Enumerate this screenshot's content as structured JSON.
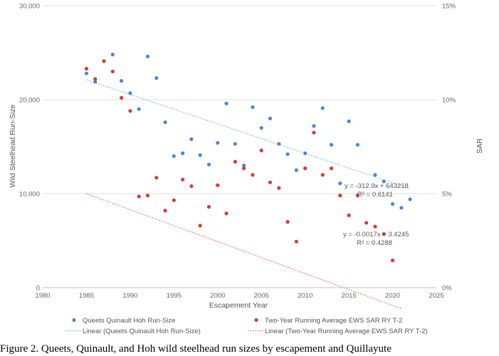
{
  "colors": {
    "series_1": "#4a86d8",
    "series_2": "#d93a32",
    "trend_1": "#7fb7bd",
    "trend_2": "#e0705f",
    "grid": "#dddddd"
  },
  "caption": "Figure 2.  Queets, Quinault, and Hoh wild steelhead run sizes by escapement and Quillayute",
  "chart_data": {
    "type": "scatter",
    "xlabel": "Escapement Year",
    "ylabel": "Wild Steelhead Run-Size",
    "y2label": "SAR",
    "xlim": [
      1980,
      2025
    ],
    "ylim": [
      0,
      30000
    ],
    "y2lim": [
      0,
      0.15
    ],
    "x_ticks": [
      "1980",
      "1985",
      "1990",
      "1995",
      "2000",
      "2005",
      "2010",
      "2015",
      "2020",
      "2025"
    ],
    "y_ticks": [
      "0",
      "10,000",
      "20,000",
      "30,000"
    ],
    "y2_ticks": [
      "0%",
      "5%",
      "10%",
      "15%"
    ],
    "grid": "horizontal",
    "legend_position": "bottom",
    "series": [
      {
        "name": "Queets Quinault Hoh Run-Size",
        "axis": "left",
        "marker": "dot",
        "points": [
          [
            1985,
            22800
          ],
          [
            1986,
            21900
          ],
          [
            1988,
            24800
          ],
          [
            1989,
            22000
          ],
          [
            1990,
            20700
          ],
          [
            1991,
            19000
          ],
          [
            1992,
            24600
          ],
          [
            1993,
            22300
          ],
          [
            1994,
            17600
          ],
          [
            1995,
            14000
          ],
          [
            1996,
            14300
          ],
          [
            1997,
            15800
          ],
          [
            1998,
            14100
          ],
          [
            1999,
            13100
          ],
          [
            2000,
            15400
          ],
          [
            2001,
            19600
          ],
          [
            2002,
            15300
          ],
          [
            2003,
            13000
          ],
          [
            2004,
            19200
          ],
          [
            2005,
            17000
          ],
          [
            2006,
            18000
          ],
          [
            2007,
            15300
          ],
          [
            2008,
            14200
          ],
          [
            2009,
            12500
          ],
          [
            2010,
            14300
          ],
          [
            2011,
            17200
          ],
          [
            2012,
            19100
          ],
          [
            2013,
            15200
          ],
          [
            2014,
            11100
          ],
          [
            2015,
            17700
          ],
          [
            2016,
            15200
          ],
          [
            2018,
            12000
          ],
          [
            2019,
            11300
          ],
          [
            2020,
            8900
          ],
          [
            2021,
            8500
          ],
          [
            2022,
            9400
          ]
        ]
      },
      {
        "name": "Two-Year Running Average EWS SAR RY T-2",
        "axis": "right",
        "marker": "dot",
        "points": [
          [
            1985,
            0.1165
          ],
          [
            1986,
            0.111
          ],
          [
            1987,
            0.1205
          ],
          [
            1988,
            0.115
          ],
          [
            1989,
            0.101
          ],
          [
            1990,
            0.094
          ],
          [
            1991,
            0.0485
          ],
          [
            1992,
            0.049
          ],
          [
            1993,
            0.0585
          ],
          [
            1994,
            0.041
          ],
          [
            1995,
            0.0465
          ],
          [
            1996,
            0.0575
          ],
          [
            1997,
            0.054
          ],
          [
            1998,
            0.033
          ],
          [
            1999,
            0.043
          ],
          [
            2000,
            0.0545
          ],
          [
            2001,
            0.0395
          ],
          [
            2002,
            0.067
          ],
          [
            2003,
            0.0635
          ],
          [
            2004,
            0.06
          ],
          [
            2005,
            0.073
          ],
          [
            2006,
            0.056
          ],
          [
            2007,
            0.053
          ],
          [
            2008,
            0.035
          ],
          [
            2009,
            0.0245
          ],
          [
            2010,
            0.0635
          ],
          [
            2011,
            0.0825
          ],
          [
            2012,
            0.06
          ],
          [
            2013,
            0.0635
          ],
          [
            2014,
            0.049
          ],
          [
            2015,
            0.0385
          ],
          [
            2016,
            0.049
          ],
          [
            2017,
            0.0345
          ],
          [
            2018,
            0.0325
          ],
          [
            2019,
            0.0285
          ],
          [
            2020,
            0.0145
          ]
        ]
      }
    ],
    "trendlines": [
      {
        "name": "Linear (Queets Quinault Hoh Run-Size)",
        "axis": "left",
        "style": "dotted",
        "x_range": [
          1985,
          2022
        ],
        "slope": -312.9,
        "intercept": 643218,
        "equation": "y = -312.9x + 643218",
        "r2": "R² = 0.6141"
      },
      {
        "name": "Linear (Two-Year Running Average EWS SAR RY T-2)",
        "axis": "right",
        "style": "dotted",
        "x_range": [
          1985,
          2021
        ],
        "slope": -0.0017,
        "intercept": 3.4245,
        "equation": "y = -0.0017x + 3.4245",
        "r2": "R² = 0.4288"
      }
    ]
  }
}
